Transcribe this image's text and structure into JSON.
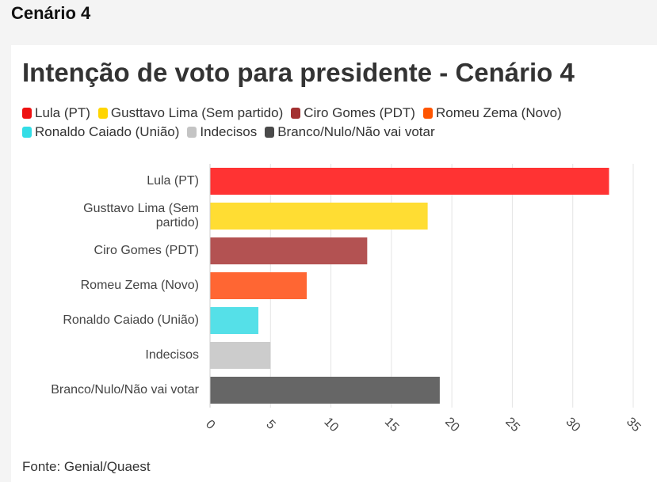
{
  "section_title": "Cenário 4",
  "source": "Fonte: Genial/Quaest",
  "chart_data": {
    "type": "bar",
    "orientation": "horizontal",
    "title": "Intenção de voto para presidente - Cenário 4",
    "categories": [
      "Lula (PT)",
      "Gusttavo Lima (Sem partido)",
      "Ciro Gomes (PDT)",
      "Romeu Zema (Novo)",
      "Ronaldo Caiado (União)",
      "Indecisos",
      "Branco/Nulo/Não vai votar"
    ],
    "category_label_lines": [
      [
        "Lula (PT)"
      ],
      [
        "Gusttavo Lima (Sem",
        "partido)"
      ],
      [
        "Ciro Gomes (PDT)"
      ],
      [
        "Romeu Zema (Novo)"
      ],
      [
        "Ronaldo Caiado (União)"
      ],
      [
        "Indecisos"
      ],
      [
        "Branco/Nulo/Não vai votar"
      ]
    ],
    "values": [
      33,
      18,
      13,
      8,
      4,
      5,
      19
    ],
    "colors": [
      "#ff3333",
      "#ffdd33",
      "#b35252",
      "#ff6633",
      "#55e0e8",
      "#cccccc",
      "#666666"
    ],
    "legend": [
      {
        "label": "Lula (PT)",
        "color": "#ee1111"
      },
      {
        "label": "Gusttavo Lima (Sem partido)",
        "color": "#ffd500"
      },
      {
        "label": "Ciro Gomes (PDT)",
        "color": "#a33030"
      },
      {
        "label": "Romeu Zema (Novo)",
        "color": "#ff5500"
      },
      {
        "label": "Ronaldo Caiado (União)",
        "color": "#33dde6"
      },
      {
        "label": "Indecisos",
        "color": "#c4c4c4"
      },
      {
        "label": "Branco/Nulo/Não vai votar",
        "color": "#4a4a4a"
      }
    ],
    "legend_position": "top",
    "xlim": [
      0,
      35
    ],
    "xticks": [
      0,
      5,
      10,
      15,
      20,
      25,
      30,
      35
    ],
    "grid": true
  }
}
